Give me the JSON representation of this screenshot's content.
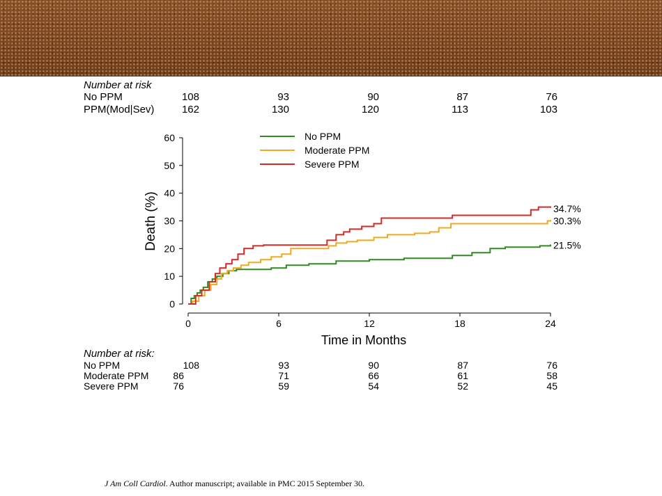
{
  "top_risk_table": {
    "title": "Number at risk",
    "rows": [
      {
        "label": "No PPM",
        "values": [
          "108",
          "93",
          "90",
          "87",
          "76"
        ]
      },
      {
        "label": "PPM(Mod|Sev)",
        "values": [
          "162",
          "130",
          "120",
          "113",
          "103"
        ]
      }
    ]
  },
  "bottom_risk_table": {
    "title": "Number at risk:",
    "rows": [
      {
        "label": "No PPM",
        "values": [
          "108",
          "93",
          "90",
          "87",
          "76"
        ]
      },
      {
        "label": "Moderate PPM",
        "values": [
          "86",
          "71",
          "66",
          "61",
          "58"
        ]
      },
      {
        "label": "Severe PPM",
        "values": [
          "76",
          "59",
          "54",
          "52",
          "45"
        ]
      }
    ]
  },
  "chart_data": {
    "type": "line",
    "title": "",
    "xlabel": "Time in Months",
    "ylabel": "Death (%)",
    "xlim": [
      0,
      24
    ],
    "ylim": [
      0,
      60
    ],
    "xticks": [
      "0",
      "6",
      "12",
      "18",
      "24"
    ],
    "yticks": [
      "0",
      "10",
      "20",
      "30",
      "40",
      "50",
      "60"
    ],
    "step": true,
    "grid": false,
    "legend_position": "top",
    "series": [
      {
        "name": "No PPM",
        "color": "#2e8b1e",
        "end_label": "21.5%",
        "x": [
          0,
          0.2,
          0.4,
          0.6,
          0.8,
          1.0,
          1.3,
          1.6,
          1.9,
          2.3,
          2.7,
          3.2,
          5.5,
          6.5,
          8.0,
          9.8,
          12.0,
          14.3,
          17.5,
          18.8,
          20.0,
          21.0,
          23.3,
          24.0
        ],
        "y": [
          0,
          2,
          3,
          4,
          5,
          6,
          8,
          9,
          10,
          11,
          12,
          12.5,
          13,
          14,
          14.5,
          15.5,
          16,
          16.5,
          17.5,
          18.5,
          20,
          20.5,
          21,
          21.5
        ]
      },
      {
        "name": "Moderate PPM",
        "color": "#f0a91e",
        "end_label": "30.3%",
        "x": [
          0,
          0.3,
          0.7,
          1.1,
          1.5,
          1.9,
          2.2,
          2.6,
          3.0,
          3.5,
          4.0,
          4.8,
          5.5,
          6.2,
          6.8,
          9.3,
          9.8,
          10.5,
          11.2,
          12.3,
          13.2,
          15.0,
          16.0,
          16.6,
          17.4,
          23.8,
          24.0
        ],
        "y": [
          0,
          1,
          3,
          5,
          7,
          9,
          11,
          12,
          13,
          14,
          15,
          16,
          17,
          18,
          20,
          21,
          22,
          22.5,
          23,
          24,
          25,
          25.5,
          26,
          27.5,
          29,
          30,
          30.3
        ]
      },
      {
        "name": "Severe PPM",
        "color": "#d42a26",
        "end_label": "34.7%",
        "x": [
          0,
          0.5,
          0.9,
          1.4,
          1.8,
          2.1,
          2.5,
          2.9,
          3.3,
          3.7,
          4.3,
          5.0,
          8.0,
          9.2,
          9.8,
          10.3,
          10.7,
          11.5,
          12.3,
          12.8,
          17.5,
          22.7,
          23.2,
          24.0
        ],
        "y": [
          0,
          3,
          5,
          8,
          11,
          13,
          14.5,
          16,
          18,
          20,
          21,
          21.3,
          21.3,
          23,
          25,
          26,
          27,
          28,
          29,
          31,
          32,
          34,
          35,
          34.7
        ]
      }
    ]
  },
  "footer": {
    "journal": "J Am Coll Cardiol",
    "rest": ". Author manuscript; available in PMC 2015 September 30."
  }
}
